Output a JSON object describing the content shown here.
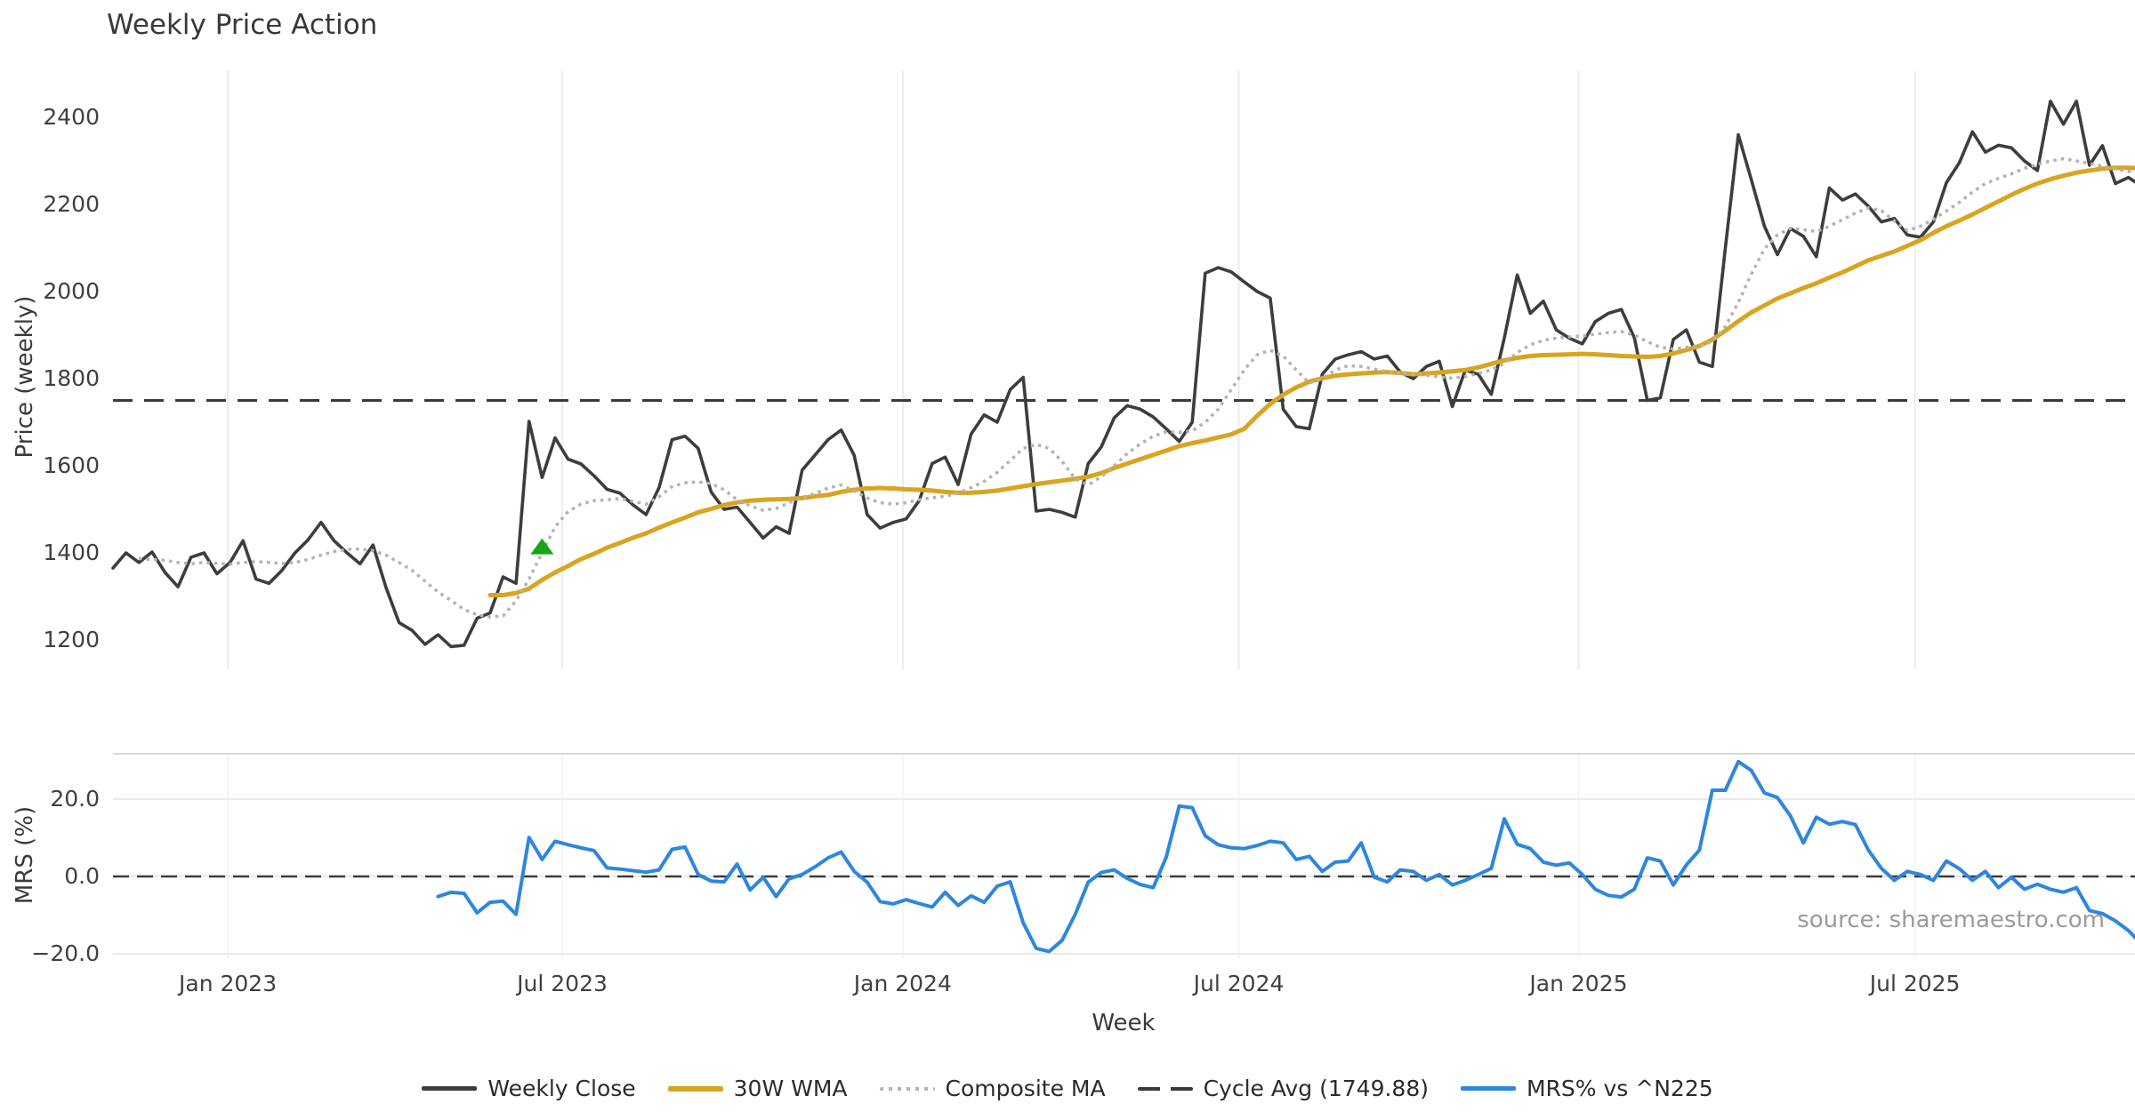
{
  "title": "Weekly Price Action",
  "source_note": "source: sharemaestro.com",
  "colors": {
    "close": "#3d3d3d",
    "wma": "#d9a41f",
    "composite": "#b3b3b3",
    "cycle_avg": "#3a3a3a",
    "mrs": "#2e86de",
    "marker": "#1aa31a",
    "grid": "#ececec",
    "grid_lower": "#f4f4f4",
    "grid_h": "#e9e9ef",
    "spine": "#d8d8d8",
    "tick_text": "#404040"
  },
  "legend": {
    "items": [
      {
        "label": "Weekly Close",
        "swatch": "close"
      },
      {
        "label": "30W WMA",
        "swatch": "wma"
      },
      {
        "label": "Composite MA",
        "swatch": "comp"
      },
      {
        "label": "Cycle Avg (1749.88)",
        "swatch": "cyc"
      },
      {
        "label": "MRS% vs ^N225",
        "swatch": "mrs"
      }
    ]
  },
  "chart_data": [
    {
      "type": "line",
      "panel": "price",
      "title": "Weekly Price Action",
      "ylabel": "Price (weekly)",
      "xlabel": "Week",
      "ylim": [
        1125,
        2515
      ],
      "yticks": [
        {
          "v": 2400,
          "label": "2400"
        },
        {
          "v": 2200,
          "label": "2200"
        },
        {
          "v": 2000,
          "label": "2000"
        },
        {
          "v": 1800,
          "label": "1800"
        },
        {
          "v": 1600,
          "label": "1600"
        },
        {
          "v": 1400,
          "label": "1400"
        },
        {
          "v": 1200,
          "label": "1200"
        }
      ],
      "xticks": [
        {
          "week": 8.83,
          "label": "Jan 2023"
        },
        {
          "week": 34.55,
          "label": "Jul 2023"
        },
        {
          "week": 60.74,
          "label": "Jan 2024"
        },
        {
          "week": 86.58,
          "label": "Jul 2024"
        },
        {
          "week": 112.71,
          "label": "Jan 2025"
        },
        {
          "week": 138.58,
          "label": "Jul 2025"
        }
      ],
      "grid": "vertical",
      "cycle_avg": 1749.88,
      "marker": {
        "week": 33,
        "value": 1415,
        "shape": "triangle-up"
      },
      "series": [
        {
          "name": "Weekly Close",
          "style": "solid",
          "width": 3.6,
          "color_key": "close",
          "start_week": 0,
          "values": [
            1365,
            1400,
            1378,
            1402,
            1355,
            1322,
            1390,
            1400,
            1352,
            1378,
            1428,
            1340,
            1330,
            1360,
            1400,
            1430,
            1470,
            1428,
            1400,
            1375,
            1418,
            1320,
            1240,
            1222,
            1190,
            1212,
            1185,
            1188,
            1250,
            1262,
            1345,
            1330,
            1702,
            1573,
            1664,
            1615,
            1604,
            1577,
            1546,
            1537,
            1510,
            1488,
            1550,
            1660,
            1668,
            1640,
            1540,
            1500,
            1505,
            1470,
            1434,
            1460,
            1445,
            1590,
            1625,
            1660,
            1682,
            1624,
            1488,
            1457,
            1470,
            1478,
            1520,
            1605,
            1620,
            1557,
            1673,
            1717,
            1700,
            1775,
            1803,
            1496,
            1500,
            1493,
            1482,
            1605,
            1643,
            1710,
            1738,
            1730,
            1712,
            1685,
            1656,
            1700,
            2042,
            2055,
            2045,
            2022,
            2000,
            1985,
            1730,
            1690,
            1685,
            1810,
            1845,
            1855,
            1862,
            1845,
            1852,
            1815,
            1800,
            1828,
            1840,
            1736,
            1820,
            1810,
            1764,
            1893,
            2038,
            1950,
            1978,
            1912,
            1893,
            1880,
            1931,
            1950,
            1959,
            1894,
            1750,
            1756,
            1890,
            1912,
            1838,
            1828,
            2100,
            2360,
            2257,
            2150,
            2085,
            2145,
            2127,
            2080,
            2238,
            2210,
            2224,
            2196,
            2160,
            2168,
            2130,
            2125,
            2160,
            2250,
            2296,
            2367,
            2320,
            2336,
            2330,
            2300,
            2278,
            2437,
            2384,
            2437,
            2290,
            2335,
            2248,
            2262,
            2242
          ]
        },
        {
          "name": "30W WMA",
          "style": "solid",
          "width": 5,
          "color_key": "wma",
          "start_week": 29,
          "values": [
            1303,
            1303,
            1308,
            1318,
            1338,
            1355,
            1370,
            1386,
            1398,
            1412,
            1423,
            1435,
            1445,
            1458,
            1470,
            1481,
            1493,
            1501,
            1510,
            1516,
            1520,
            1522,
            1523,
            1524,
            1526,
            1530,
            1533,
            1540,
            1545,
            1548,
            1549,
            1548,
            1546,
            1545,
            1543,
            1540,
            1538,
            1538,
            1540,
            1543,
            1548,
            1553,
            1558,
            1562,
            1566,
            1570,
            1575,
            1583,
            1595,
            1605,
            1615,
            1625,
            1635,
            1645,
            1652,
            1658,
            1665,
            1672,
            1685,
            1715,
            1742,
            1763,
            1780,
            1793,
            1801,
            1807,
            1810,
            1812,
            1814,
            1815,
            1813,
            1810,
            1812,
            1814,
            1817,
            1820,
            1826,
            1834,
            1842,
            1848,
            1852,
            1854,
            1855,
            1856,
            1857,
            1856,
            1854,
            1852,
            1851,
            1850,
            1852,
            1858,
            1866,
            1875,
            1890,
            1910,
            1932,
            1952,
            1968,
            1984,
            1996,
            2008,
            2019,
            2032,
            2044,
            2058,
            2072,
            2082,
            2092,
            2105,
            2118,
            2135,
            2150,
            2163,
            2177,
            2192,
            2207,
            2222,
            2236,
            2248,
            2258,
            2266,
            2273,
            2278,
            2282,
            2284,
            2284,
            2283
          ]
        },
        {
          "name": "Composite MA",
          "style": "dotted",
          "width": 3.5,
          "color_key": "composite",
          "start_week": 2,
          "values": [
            1387,
            1385,
            1383,
            1378,
            1375,
            1378,
            1376,
            1374,
            1378,
            1380,
            1378,
            1376,
            1378,
            1385,
            1395,
            1403,
            1408,
            1409,
            1405,
            1395,
            1378,
            1360,
            1335,
            1310,
            1291,
            1270,
            1258,
            1253,
            1255,
            1290,
            1340,
            1400,
            1460,
            1495,
            1512,
            1520,
            1522,
            1525,
            1518,
            1512,
            1529,
            1552,
            1561,
            1563,
            1559,
            1545,
            1522,
            1508,
            1498,
            1502,
            1515,
            1528,
            1536,
            1549,
            1556,
            1542,
            1526,
            1515,
            1512,
            1515,
            1522,
            1527,
            1530,
            1537,
            1550,
            1564,
            1585,
            1612,
            1640,
            1649,
            1640,
            1610,
            1570,
            1556,
            1575,
            1600,
            1628,
            1650,
            1668,
            1678,
            1677,
            1680,
            1700,
            1730,
            1775,
            1820,
            1855,
            1865,
            1852,
            1820,
            1790,
            1800,
            1820,
            1830,
            1828,
            1822,
            1816,
            1812,
            1810,
            1808,
            1804,
            1801,
            1805,
            1812,
            1820,
            1835,
            1860,
            1878,
            1888,
            1893,
            1896,
            1898,
            1902,
            1906,
            1908,
            1900,
            1885,
            1872,
            1868,
            1872,
            1876,
            1885,
            1920,
            1975,
            2040,
            2098,
            2130,
            2145,
            2142,
            2138,
            2150,
            2165,
            2180,
            2192,
            2186,
            2162,
            2140,
            2150,
            2166,
            2185,
            2205,
            2228,
            2248,
            2260,
            2270,
            2283,
            2292,
            2300,
            2305,
            2300,
            2294,
            2288,
            2281,
            2276,
            2271
          ]
        },
        {
          "name": "Cycle Avg (1749.88)",
          "style": "dashed",
          "width": 3,
          "color_key": "cycle_avg",
          "const_value": 1749.88
        }
      ]
    },
    {
      "type": "line",
      "panel": "mrs",
      "ylabel": "MRS (%)",
      "ylim": [
        -21.5,
        31.5
      ],
      "yticks": [
        {
          "v": 20,
          "label": "20.0"
        },
        {
          "v": 0,
          "label": "0.0"
        },
        {
          "v": -20,
          "label": "−20.0"
        }
      ],
      "grid": "horizontal+vertical",
      "zero_line_dashed": true,
      "series": [
        {
          "name": "MRS% vs ^N225",
          "style": "solid",
          "width": 4,
          "color_key": "mrs",
          "start_week": 25,
          "values": [
            -5.2,
            -4.1,
            -4.4,
            -9.4,
            -6.7,
            -6.4,
            -9.8,
            10.1,
            4.4,
            9.1,
            8.2,
            7.4,
            6.7,
            2.2,
            1.9,
            1.5,
            1.1,
            1.7,
            7.0,
            7.6,
            0.5,
            -1.2,
            -1.4,
            3.2,
            -3.5,
            -0.2,
            -5.2,
            -0.6,
            0.5,
            2.5,
            4.8,
            6.3,
            1.3,
            -1.5,
            -6.5,
            -7.1,
            -6.0,
            -7.0,
            -7.9,
            -4.1,
            -7.5,
            -5.0,
            -6.7,
            -2.5,
            -1.4,
            -12.0,
            -18.6,
            -19.4,
            -16.5,
            -9.8,
            -1.5,
            1.0,
            1.7,
            -0.5,
            -2.1,
            -2.9,
            5.0,
            18.2,
            17.8,
            10.5,
            8.2,
            7.4,
            7.2,
            8.0,
            9.1,
            8.7,
            4.4,
            5.2,
            1.3,
            3.7,
            4.0,
            8.7,
            -0.2,
            -1.4,
            1.7,
            1.3,
            -1.0,
            0.5,
            -2.2,
            -1.0,
            0.5,
            2.1,
            14.9,
            8.3,
            7.2,
            3.7,
            2.9,
            3.5,
            0.5,
            -3.3,
            -4.9,
            -5.3,
            -3.3,
            4.8,
            4.0,
            -2.2,
            3.0,
            6.8,
            22.3,
            22.3,
            29.7,
            27.4,
            21.6,
            20.4,
            15.7,
            8.7,
            15.3,
            13.5,
            14.2,
            13.4,
            6.8,
            2.1,
            -1.0,
            1.3,
            0.5,
            -1.0,
            4.0,
            2.0,
            -1.0,
            1.3,
            -2.9,
            -0.2,
            -3.3,
            -2.0,
            -3.3,
            -4.1,
            -2.9,
            -8.8,
            -9.6,
            -11.5,
            -14.0,
            -17.5
          ]
        }
      ]
    }
  ]
}
